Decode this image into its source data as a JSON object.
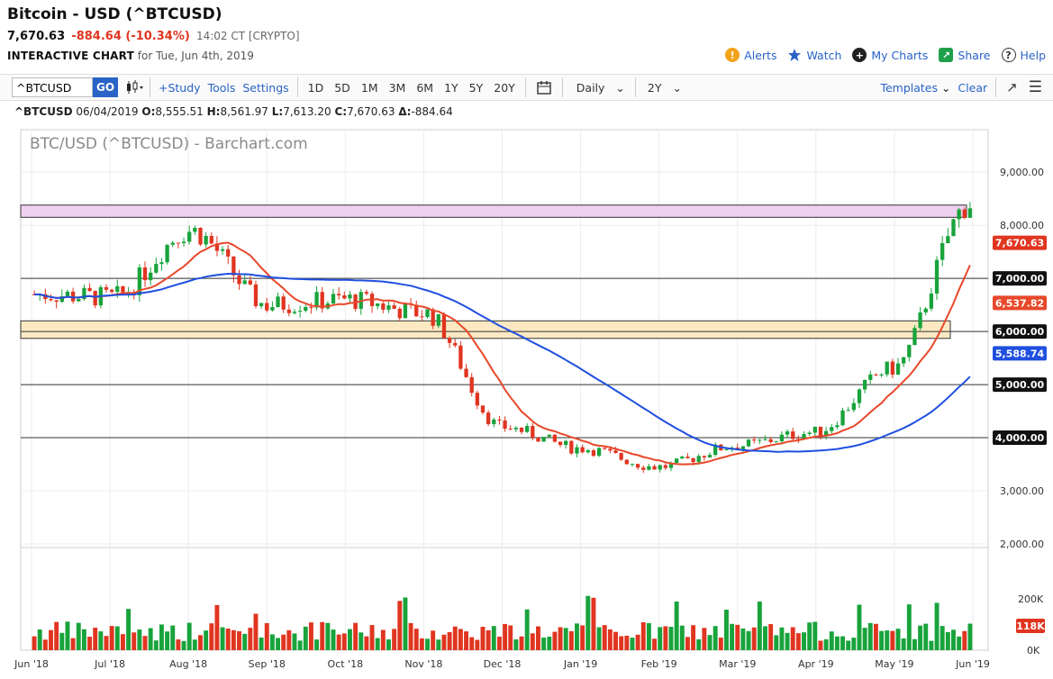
{
  "header": {
    "title": "Bitcoin - USD (^BTCUSD)",
    "last": "7,670.63",
    "change": "-884.64 (-10.34%)",
    "time": "14:02 CT [CRYPTO]",
    "interactive_label": "INTERACTIVE CHART",
    "interactive_date": "for Tue, Jun 4th, 2019",
    "links": {
      "alerts": "Alerts",
      "watch": "Watch",
      "my_charts": "My Charts",
      "share": "Share",
      "help": "Help"
    }
  },
  "toolbar": {
    "symbol": "^BTCUSD",
    "go": "GO",
    "study": "+Study",
    "tools": "Tools",
    "settings": "Settings",
    "periods": [
      "1D",
      "5D",
      "1M",
      "3M",
      "6M",
      "1Y",
      "5Y",
      "20Y"
    ],
    "interval": "Daily",
    "range": "2Y",
    "templates": "Templates",
    "clear": "Clear"
  },
  "ohlc": {
    "symbol": "^BTCUSD",
    "date": "06/04/2019",
    "open": "8,555.51",
    "high": "8,561.97",
    "low": "7,613.20",
    "close": "7,670.63",
    "delta": "-884.64",
    "o_label": "O:",
    "h_label": "H:",
    "l_label": "L:",
    "c_label": "C:",
    "d_label": "Δ:"
  },
  "chart_data": {
    "type": "candlestick",
    "watermark": "BTC/USD (^BTCUSD) - Barchart.com",
    "colors": {
      "up": "#18a33b",
      "down": "#e03520",
      "ma_fast": "#e8482a",
      "ma_slow": "#1f4fe0",
      "resistance_band": "#f0d0f0",
      "support_band": "#fbe9c3"
    },
    "y_ticks": [
      "9,000.00",
      "8,000.00",
      "7,000.00",
      "6,000.00",
      "5,000.00",
      "4,000.00",
      "3,000.00",
      "2,000.00"
    ],
    "ylim": [
      2000,
      9800
    ],
    "x_ticks": [
      "Jun '18",
      "Jul '18",
      "Aug '18",
      "Sep '18",
      "Oct '18",
      "Nov '18",
      "Dec '18",
      "Jan '19",
      "Feb '19",
      "Mar '19",
      "Apr '19",
      "May '19",
      "Jun '19"
    ],
    "last_price_label": "7,670.63",
    "ma_fast_label": "6,537.82",
    "ma_slow_label": "5,588.74",
    "level_labels": [
      "7,000.00",
      "6,000.00",
      "5,000.00",
      "4,000.00"
    ],
    "horizontal_levels": [
      7000,
      6000,
      5000,
      4000
    ],
    "resistance_band": [
      8150,
      8380
    ],
    "support_band": [
      5870,
      6200
    ],
    "monthly_close": [
      {
        "x": "Jun '18",
        "close": 6700
      },
      {
        "x": "Jul '18",
        "close": 6650
      },
      {
        "x": "Aug '18",
        "close": 7900
      },
      {
        "x": "Sep '18",
        "close": 6500
      },
      {
        "x": "Oct '18",
        "close": 6600
      },
      {
        "x": "Nov '18",
        "close": 6350
      },
      {
        "x": "Dec '18",
        "close": 4200
      },
      {
        "x": "Jan '19",
        "close": 3800
      },
      {
        "x": "Feb '19",
        "close": 3450
      },
      {
        "x": "Mar '19",
        "close": 3850
      },
      {
        "x": "Apr '19",
        "close": 4100
      },
      {
        "x": "May '19",
        "close": 5300
      },
      {
        "x": "Jun '19",
        "close": 8400
      }
    ],
    "volume_ticks": [
      "200K",
      "0K"
    ],
    "volume_last_label": "118K"
  }
}
